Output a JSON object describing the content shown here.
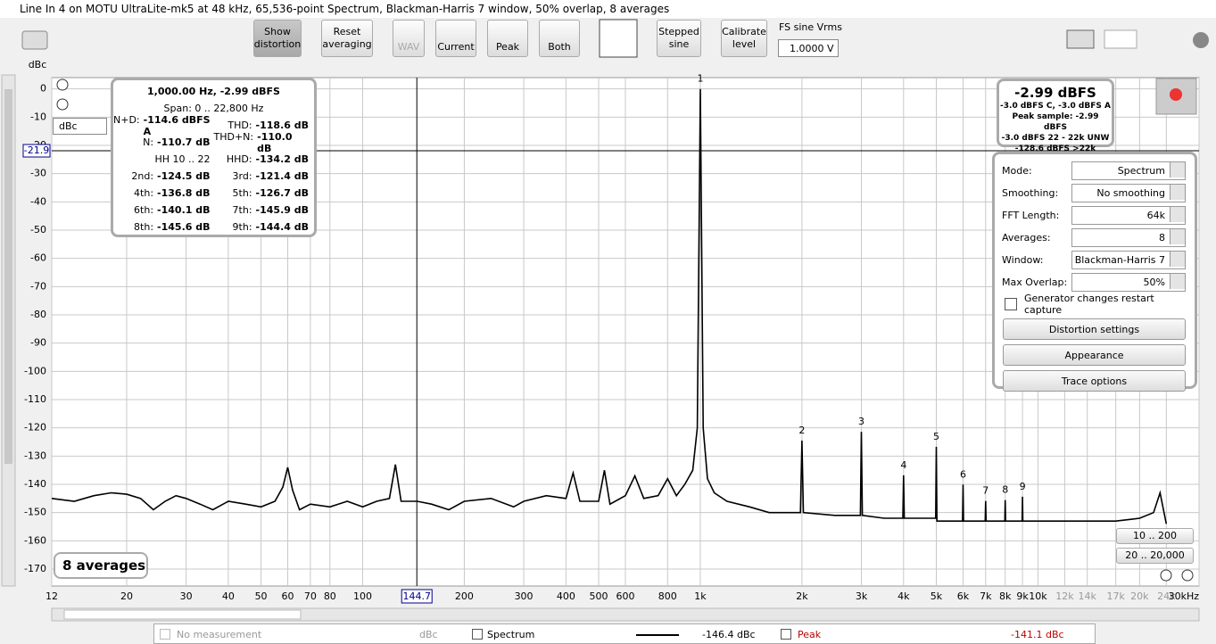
{
  "window_title": "Line In 4 on MOTU UltraLite-mk5 at 48 kHz, 65,536-point Spectrum, Blackman-Harris 7 window, 50% overlap, 8 averages",
  "toolbar": {
    "buttons": [
      "Show distortion",
      "Reset averaging",
      "WAV",
      "Current",
      "Peak",
      "Both",
      "Stepped sine",
      "Calibrate level"
    ],
    "fs_label": "FS sine Vrms",
    "fs_value": "1.0000 V"
  },
  "y_unit": "dBc",
  "unit_selector": "dBc",
  "distortion_panel": {
    "header": "1,000.00 Hz, -2.99 dBFS",
    "span": "Span: 0 .. 22,800 Hz",
    "rows": [
      {
        "left": [
          "N+D:",
          "-114.6 dBFS A"
        ],
        "right": [
          "THD:",
          "-118.6 dB"
        ]
      },
      {
        "left": [
          "N:",
          "-110.7 dB"
        ],
        "right": [
          "THD+N:",
          "-110.0 dB"
        ]
      },
      {
        "left": [
          "HH 10 .. 22"
        ],
        "right": [
          "HHD:",
          "-134.2 dB"
        ]
      },
      {
        "left": [
          "2nd:",
          "-124.5 dB"
        ],
        "right": [
          "3rd:",
          "-121.4 dB"
        ]
      },
      {
        "left": [
          "4th:",
          "-136.8 dB"
        ],
        "right": [
          "5th:",
          "-126.7 dB"
        ]
      },
      {
        "left": [
          "6th:",
          "-140.1 dB"
        ],
        "right": [
          "7th:",
          "-145.9 dB"
        ]
      },
      {
        "left": [
          "8th:",
          "-145.6 dB"
        ],
        "right": [
          "9th:",
          "-144.4 dB"
        ]
      }
    ]
  },
  "level_panel": {
    "main": "-2.99 dBFS",
    "lines": [
      "-3.0 dBFS C, -3.0 dBFS A",
      "Peak sample: -2.99 dBFS",
      "-3.0 dBFS 22 - 22k UNW",
      "-128.6 dBFS >22k"
    ]
  },
  "settings": {
    "rows": [
      {
        "label": "Mode:",
        "value": "Spectrum"
      },
      {
        "label": "Smoothing:",
        "value": "No  smoothing"
      },
      {
        "label": "FFT Length:",
        "value": "64k"
      },
      {
        "label": "Averages:",
        "value": "8"
      },
      {
        "label": "Window:",
        "value": "Blackman-Harris 7"
      },
      {
        "label": "Max Overlap:",
        "value": "50%"
      }
    ],
    "checkbox": "Generator changes restart capture",
    "buttons": [
      "Distortion settings",
      "Appearance",
      "Trace options"
    ]
  },
  "averages_badge": "8 averages",
  "range_buttons": [
    "10 .. 200",
    "20 .. 20,000"
  ],
  "legend_bar": {
    "none": "No measurement",
    "none_unit": "dBc",
    "spectrum": "Spectrum",
    "spectrum_value": "-146.4 dBc",
    "peak": "Peak",
    "peak_value": "-141.1 dBc"
  },
  "chart_data": {
    "type": "line",
    "xscale": "log",
    "grid": true,
    "xlim": [
      12,
      30000
    ],
    "ylim": [
      -176,
      4
    ],
    "xticks": [
      12,
      20,
      30,
      40,
      50,
      60,
      70,
      80,
      100,
      200,
      300,
      400,
      500,
      600,
      800,
      {
        "value": 1000,
        "label": "1k"
      },
      {
        "value": 2000,
        "label": "2k"
      },
      {
        "value": 3000,
        "label": "3k"
      },
      {
        "value": 4000,
        "label": "4k"
      },
      {
        "value": 5000,
        "label": "5k"
      },
      {
        "value": 6000,
        "label": "6k"
      },
      {
        "value": 7000,
        "label": "7k"
      },
      {
        "value": 8000,
        "label": "8k"
      },
      {
        "value": 9000,
        "label": "9k"
      },
      {
        "value": 10000,
        "label": "10k"
      },
      {
        "value": 12000,
        "label": "12k"
      },
      {
        "value": 14000,
        "label": "14k"
      },
      {
        "value": 17000,
        "label": "17k"
      },
      {
        "value": 20000,
        "label": "20k"
      },
      {
        "value": 24000,
        "label": "24k"
      },
      {
        "value": 30000,
        "label": "30kHz"
      }
    ],
    "yticks": [
      0,
      -10,
      -20,
      -30,
      -40,
      -50,
      -60,
      -70,
      -80,
      -90,
      -100,
      -110,
      -120,
      -130,
      -140,
      -150,
      -160,
      -170
    ],
    "cursor": {
      "x": {
        "value": 144.7,
        "label": "144.7"
      },
      "y": {
        "value": -21.9,
        "label": "-21.9"
      }
    },
    "harmonics": [
      {
        "label": "1",
        "x": 1000,
        "y": 0
      },
      {
        "label": "2",
        "x": 2000,
        "y": -124.5
      },
      {
        "label": "3",
        "x": 3000,
        "y": -121.4
      },
      {
        "label": "4",
        "x": 4000,
        "y": -136.8
      },
      {
        "label": "5",
        "x": 5000,
        "y": -126.7
      },
      {
        "label": "6",
        "x": 6000,
        "y": -140.1
      },
      {
        "label": "7",
        "x": 7000,
        "y": -145.9
      },
      {
        "label": "8",
        "x": 8000,
        "y": -145.6
      },
      {
        "label": "9",
        "x": 9000,
        "y": -144.4
      }
    ],
    "x": [
      12,
      14,
      16,
      18,
      20,
      22,
      24,
      26,
      28,
      30,
      33,
      36,
      40,
      45,
      50,
      55,
      58,
      60,
      62,
      65,
      70,
      80,
      90,
      100,
      110,
      120,
      125,
      130,
      145,
      160,
      180,
      200,
      240,
      280,
      300,
      350,
      400,
      420,
      440,
      500,
      520,
      540,
      600,
      640,
      680,
      750,
      800,
      850,
      900,
      950,
      980,
      1000,
      1020,
      1050,
      1100,
      1200,
      1400,
      1600,
      1800,
      1980,
      2000,
      2020,
      2500,
      2980,
      3000,
      3020,
      3500,
      3980,
      4000,
      4020,
      4980,
      5000,
      5020,
      5980,
      6000,
      6020,
      6980,
      7000,
      7020,
      7980,
      8000,
      8020,
      8980,
      9000,
      9020,
      11000,
      14000,
      17000,
      20000,
      22000,
      23000,
      24000
    ],
    "series": [
      {
        "name": "Spectrum",
        "color": "#000000",
        "values": [
          -145,
          -146,
          -144,
          -143,
          -143.5,
          -145,
          -149,
          -146,
          -144,
          -145,
          -147,
          -149,
          -146,
          -147,
          -148,
          -146,
          -141,
          -134,
          -142,
          -149,
          -147,
          -148,
          -146,
          -148,
          -146,
          -145,
          -133,
          -146,
          -146,
          -147,
          -149,
          -146,
          -145,
          -148,
          -146,
          -144,
          -145,
          -136,
          -146,
          -146,
          -135,
          -147,
          -144,
          -137,
          -145,
          -144,
          -138,
          -144,
          -140,
          -135,
          -120,
          0,
          -120,
          -138,
          -143,
          -146,
          -148,
          -150,
          -150,
          -150,
          -124.5,
          -150,
          -151,
          -151,
          -121.4,
          -151,
          -152,
          -152,
          -136.8,
          -152,
          -152,
          -126.7,
          -153,
          -153,
          -140.1,
          -153,
          -153,
          -145.9,
          -153,
          -153,
          -145.6,
          -153,
          -153,
          -144.4,
          -153,
          -153,
          -153,
          -153,
          -152,
          -150,
          -143,
          -154
        ]
      }
    ]
  }
}
